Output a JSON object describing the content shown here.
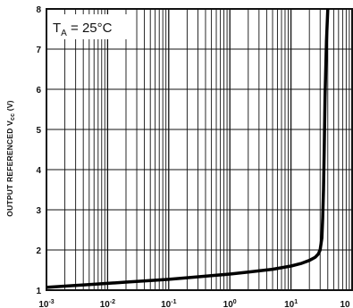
{
  "chart_data": {
    "type": "line",
    "title": "",
    "xlabel": "",
    "ylabel": "OUTPUT REFERENCED V",
    "ylabel_sub": "cc",
    "ylabel_suffix": " (V)",
    "x_scale": "log",
    "xlim": [
      0.001,
      100
    ],
    "ylim": [
      1,
      8
    ],
    "grid": true,
    "x_ticks": [
      {
        "base": "10",
        "exp": "-3"
      },
      {
        "base": "10",
        "exp": "-2"
      },
      {
        "base": "10",
        "exp": "-1"
      },
      {
        "base": "10",
        "exp": "0"
      },
      {
        "base": "10",
        "exp": "1"
      },
      {
        "base": "10",
        "exp": ""
      }
    ],
    "y_ticks": [
      "1",
      "2",
      "3",
      "4",
      "5",
      "6",
      "7",
      "8"
    ],
    "annotation": {
      "prefix": "T",
      "sub": "A",
      "rest": " = 25°C"
    },
    "series": [
      {
        "x": [
          0.001,
          0.002,
          0.005,
          0.01,
          0.02,
          0.05,
          0.1,
          0.2,
          0.5,
          1,
          2,
          5,
          10,
          15,
          20,
          25,
          28,
          30,
          32,
          33,
          34,
          35,
          36,
          38,
          40
        ],
        "y": [
          1.07,
          1.1,
          1.14,
          1.17,
          1.2,
          1.24,
          1.27,
          1.31,
          1.36,
          1.4,
          1.45,
          1.52,
          1.6,
          1.67,
          1.74,
          1.82,
          1.9,
          2.0,
          2.3,
          2.8,
          3.5,
          4.5,
          5.8,
          7.2,
          8.0
        ]
      }
    ]
  }
}
